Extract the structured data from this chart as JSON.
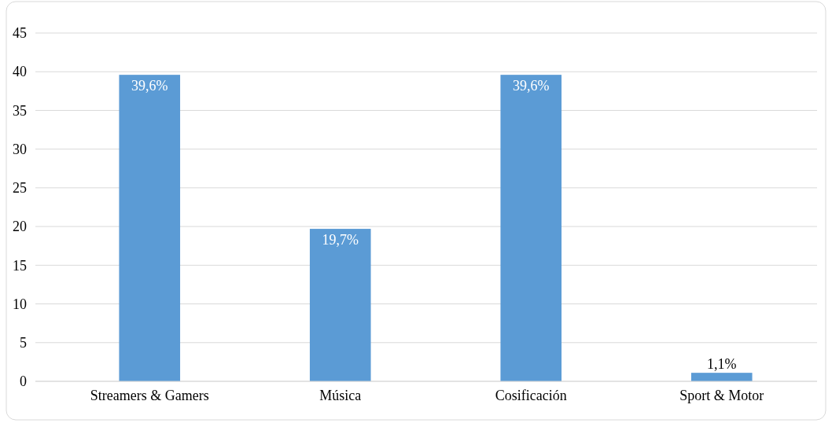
{
  "chart_data": {
    "type": "bar",
    "categories": [
      "Streamers & Gamers",
      "Música",
      "Cosificación",
      "Sport & Motor"
    ],
    "values": [
      39.6,
      19.7,
      39.6,
      1.1
    ],
    "value_labels": [
      "39,6%",
      "19,7%",
      "39,6%",
      "1,1%"
    ],
    "color": "#5b9bd5",
    "ylim": [
      0,
      45
    ],
    "yticks": [
      0,
      5,
      10,
      15,
      20,
      25,
      30,
      35,
      40,
      45
    ],
    "grid": "y"
  }
}
